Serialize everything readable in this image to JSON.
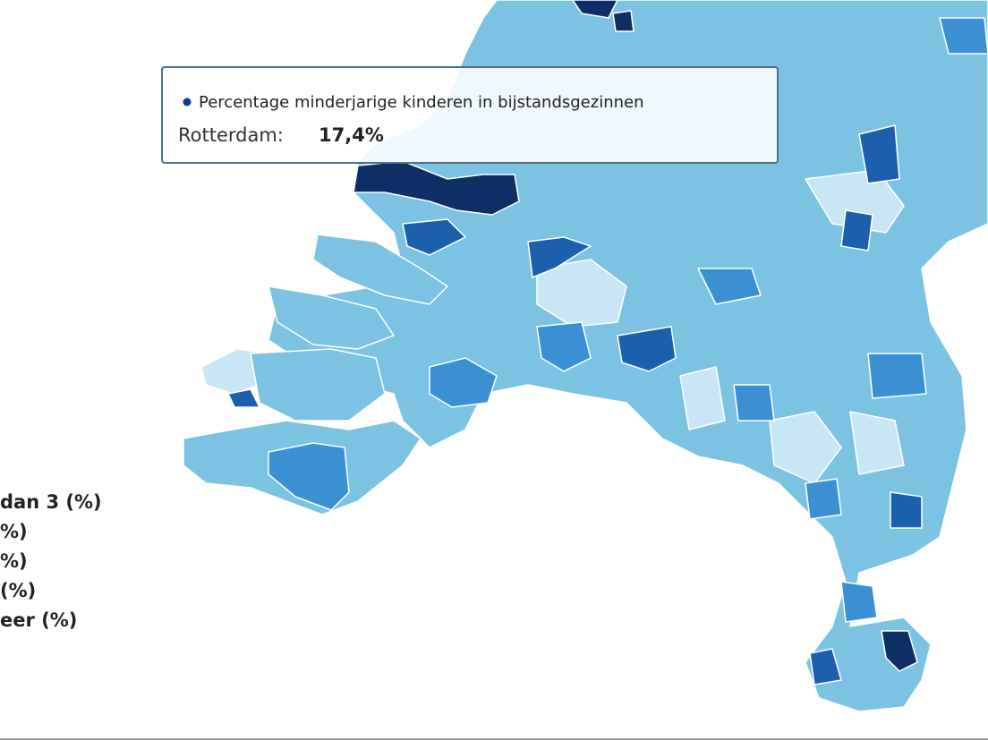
{
  "tooltip": {
    "series": "Percentage minderjarige kinderen in bijstandsgezinnen",
    "label": "Rotterdam:",
    "value": "17,4%"
  },
  "legend": {
    "items": [
      "dan 3 (%)",
      "%)",
      "%)",
      "(%)",
      "eer (%)"
    ]
  }
}
